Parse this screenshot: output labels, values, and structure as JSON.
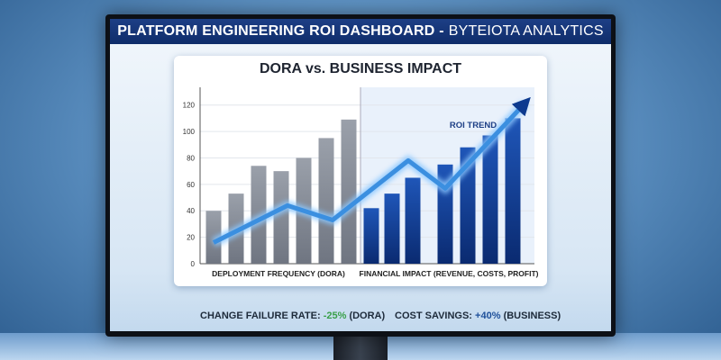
{
  "header": {
    "title": "PLATFORM ENGINEERING ROI DASHBOARD -",
    "subtitle": "BYTEIOTA ANALYTICS"
  },
  "chart_data": {
    "type": "bar",
    "title": "DORA vs. BUSINESS IMPACT",
    "ylim": [
      0,
      130
    ],
    "yticks": [
      "0",
      "20",
      "40",
      "60",
      "80",
      "100",
      "120"
    ],
    "grid": true,
    "groups": [
      {
        "label": "DEPLOYMENT FREQUENCY (DORA)",
        "values": [
          40,
          53,
          74,
          70,
          80,
          95,
          109
        ],
        "color": "#8a8f99"
      },
      {
        "label": "FINANCIAL IMPACT (REVENUE, COSTS, PROFIT)",
        "values": [
          42,
          53,
          65,
          75,
          88,
          97,
          110
        ],
        "color": "#0d3a8f"
      }
    ],
    "trend": {
      "label": "ROI TREND",
      "values": [
        16,
        44,
        33,
        78,
        57,
        121
      ],
      "color": "#3b8fe0"
    }
  },
  "footer": {
    "left_label": "CHANGE FAILURE RATE:",
    "left_value": "-25%",
    "left_suffix": "(DORA)",
    "right_label": "COST SAVINGS:",
    "right_value": "+40%",
    "right_suffix": "(BUSINESS)"
  }
}
